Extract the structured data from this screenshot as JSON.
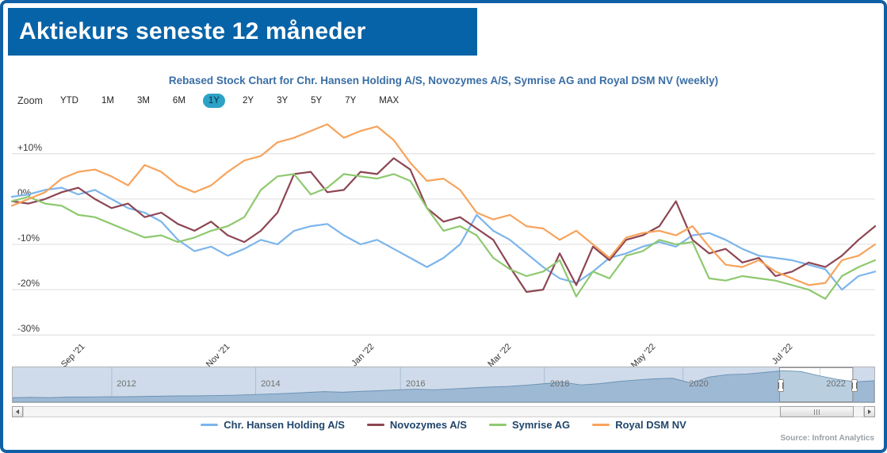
{
  "header": {
    "title": "Aktiekurs seneste 12 måneder"
  },
  "chart": {
    "zoom": {
      "label": "Zoom",
      "buttons": [
        "YTD",
        "1M",
        "3M",
        "6M",
        "1Y",
        "2Y",
        "3Y",
        "5Y",
        "7Y",
        "MAX"
      ],
      "selected": "1Y"
    },
    "source": "Source: Infront Analytics"
  },
  "chart_data": {
    "type": "line",
    "title": "Rebased Stock Chart for Chr. Hansen Holding A/S, Novozymes A/S, Symrise AG and Royal DSM NV (weekly)",
    "x_unit": "weekly",
    "x_range": [
      "Aug 2021",
      "Aug 2022"
    ],
    "ylim": [
      -31,
      18
    ],
    "grid": true,
    "legend_position": "bottom",
    "y_ticks": [
      {
        "value": 10,
        "label": "+10%"
      },
      {
        "value": 0,
        "label": "0%"
      },
      {
        "value": -10,
        "label": "-10%"
      },
      {
        "value": -20,
        "label": "-20%"
      },
      {
        "value": -30,
        "label": "-30%"
      }
    ],
    "x_ticks": [
      {
        "pos": 0.079,
        "label": "Sep '21"
      },
      {
        "pos": 0.247,
        "label": "Nov '21"
      },
      {
        "pos": 0.414,
        "label": "Jan '22"
      },
      {
        "pos": 0.573,
        "label": "Mar '22"
      },
      {
        "pos": 0.74,
        "label": "May '22"
      },
      {
        "pos": 0.899,
        "label": "Jul '22"
      }
    ],
    "series": [
      {
        "name": "Chr. Hansen Holding A/S",
        "color": "#7cb5ec",
        "values": [
          0.5,
          1,
          2,
          2.5,
          1,
          2,
          0,
          -2,
          -3,
          -5,
          -9,
          -11.5,
          -10.5,
          -12.5,
          -11,
          -9,
          -10,
          -7,
          -6,
          -5.5,
          -8,
          -10,
          -9,
          -11,
          -13,
          -15,
          -13,
          -10,
          -3.5,
          -7,
          -9,
          -12,
          -15,
          -17.5,
          -18.5,
          -16,
          -13,
          -12,
          -10.5,
          -9.5,
          -10.5,
          -8,
          -7.5,
          -9,
          -11,
          -12.5,
          -13,
          -13.5,
          -14.5,
          -15.5,
          -20,
          -17,
          -16
        ]
      },
      {
        "name": "Novozymes A/S",
        "color": "#8d4653",
        "values": [
          -0.5,
          -1,
          0,
          1.5,
          2.5,
          0,
          -2,
          -1,
          -4,
          -3,
          -5.5,
          -7,
          -5,
          -8,
          -9.5,
          -7,
          -3,
          5.5,
          6,
          1.5,
          2,
          6,
          5.5,
          9,
          6.5,
          -2,
          -5,
          -4,
          -6.5,
          -9,
          -15,
          -20.5,
          -20,
          -12,
          -19,
          -10.5,
          -13.5,
          -9,
          -8,
          -6,
          -0.5,
          -9,
          -12,
          -11,
          -14,
          -13,
          -17,
          -16,
          -14,
          -15,
          -12.5,
          -9,
          -6
        ]
      },
      {
        "name": "Symrise AG",
        "color": "#8ec96f",
        "values": [
          -0.5,
          0.5,
          -1,
          -1.5,
          -3.5,
          -4,
          -5.5,
          -7,
          -8.5,
          -8,
          -9.5,
          -8.5,
          -7,
          -6,
          -4,
          2,
          5,
          5.5,
          1,
          2.5,
          5.5,
          5,
          4.5,
          5.5,
          4,
          -2,
          -7,
          -6,
          -8,
          -13,
          -15.5,
          -17,
          -16,
          -13.5,
          -21.5,
          -16,
          -17.5,
          -12.5,
          -11.5,
          -9,
          -10,
          -9.5,
          -17.5,
          -18,
          -17,
          -17.5,
          -18,
          -19,
          -20,
          -22,
          -17,
          -15,
          -13.5
        ]
      },
      {
        "name": "Royal DSM NV",
        "color": "#f7a35c",
        "values": [
          -1.5,
          0,
          1.5,
          4.5,
          6,
          6.5,
          5,
          3,
          7.5,
          6,
          3,
          1.5,
          3,
          6,
          8.5,
          9.5,
          12.5,
          13.5,
          15,
          16.5,
          13.5,
          15,
          16,
          13,
          8,
          4,
          4.5,
          2,
          -3,
          -4.5,
          -3.5,
          -6,
          -6.5,
          -9,
          -7,
          -10,
          -13,
          -8.5,
          -7.5,
          -7,
          -8,
          -6,
          -10.5,
          -14.5,
          -15,
          -13.5,
          -16,
          -17.5,
          -19,
          -18.5,
          -13.5,
          -12.5,
          -10
        ]
      }
    ],
    "navigator": {
      "year_labels": [
        "2012",
        "2014",
        "2016",
        "2018",
        "2020",
        "2022"
      ],
      "year_fracs": [
        0.115,
        0.282,
        0.45,
        0.617,
        0.778,
        0.937
      ],
      "values": [
        0.1,
        0.11,
        0.1,
        0.12,
        0.12,
        0.13,
        0.13,
        0.14,
        0.15,
        0.16,
        0.16,
        0.17,
        0.18,
        0.2,
        0.22,
        0.24,
        0.27,
        0.3,
        0.28,
        0.31,
        0.33,
        0.36,
        0.38,
        0.36,
        0.39,
        0.42,
        0.45,
        0.47,
        0.51,
        0.56,
        0.61,
        0.52,
        0.56,
        0.63,
        0.68,
        0.72,
        0.74,
        0.58,
        0.78,
        0.86,
        0.88,
        0.93,
        0.99,
        0.96,
        0.82,
        0.7,
        0.62,
        0.66
      ],
      "selected_range": [
        0.89,
        0.975
      ]
    }
  }
}
